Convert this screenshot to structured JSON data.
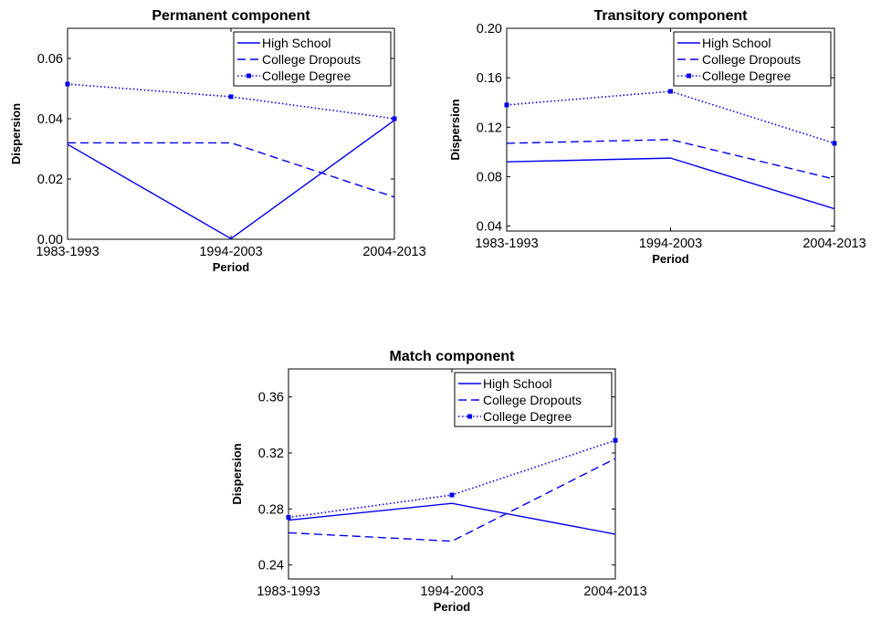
{
  "chart_data": [
    {
      "type": "line",
      "title": "Permanent component",
      "xlabel": "Period",
      "ylabel": "Dispersion",
      "categories": [
        "1983-1993",
        "1994-2003",
        "2004-2013"
      ],
      "ylim": [
        0,
        0.07
      ],
      "yticks": [
        "0.00",
        "0.02",
        "0.04",
        "0.06"
      ],
      "legend_position": "top-right",
      "series": [
        {
          "name": "High School",
          "style": "solid",
          "values": [
            0.0315,
            0.0002,
            0.0395
          ]
        },
        {
          "name": "College Dropouts",
          "style": "dashed",
          "values": [
            0.032,
            0.032,
            0.014
          ]
        },
        {
          "name": "College Degree",
          "style": "dotted-square",
          "values": [
            0.0515,
            0.0473,
            0.04
          ]
        }
      ]
    },
    {
      "type": "line",
      "title": "Transitory component",
      "xlabel": "Period",
      "ylabel": "Dispersion",
      "categories": [
        "1983-1993",
        "1994-2003",
        "2004-2013"
      ],
      "ylim": [
        0.036,
        0.2
      ],
      "yticks": [
        "0.04",
        "0.08",
        "0.12",
        "0.16",
        "0.20"
      ],
      "legend_position": "top-right",
      "series": [
        {
          "name": "High School",
          "style": "solid",
          "values": [
            0.092,
            0.095,
            0.054
          ]
        },
        {
          "name": "College Dropouts",
          "style": "dashed",
          "values": [
            0.107,
            0.11,
            0.078
          ]
        },
        {
          "name": "College Degree",
          "style": "dotted-square",
          "values": [
            0.138,
            0.149,
            0.107
          ]
        }
      ]
    },
    {
      "type": "line",
      "title": "Match component",
      "xlabel": "Period",
      "ylabel": "Dispersion",
      "categories": [
        "1983-1993",
        "1994-2003",
        "2004-2013"
      ],
      "ylim": [
        0.23,
        0.38
      ],
      "yticks": [
        "0.24",
        "0.28",
        "0.32",
        "0.36"
      ],
      "legend_position": "top-right",
      "series": [
        {
          "name": "High School",
          "style": "solid",
          "values": [
            0.272,
            0.284,
            0.262
          ]
        },
        {
          "name": "College Dropouts",
          "style": "dashed",
          "values": [
            0.263,
            0.257,
            0.316
          ]
        },
        {
          "name": "College Degree",
          "style": "dotted-square",
          "values": [
            0.274,
            0.29,
            0.329
          ]
        }
      ]
    }
  ],
  "colors": {
    "line": "#0000ee"
  }
}
